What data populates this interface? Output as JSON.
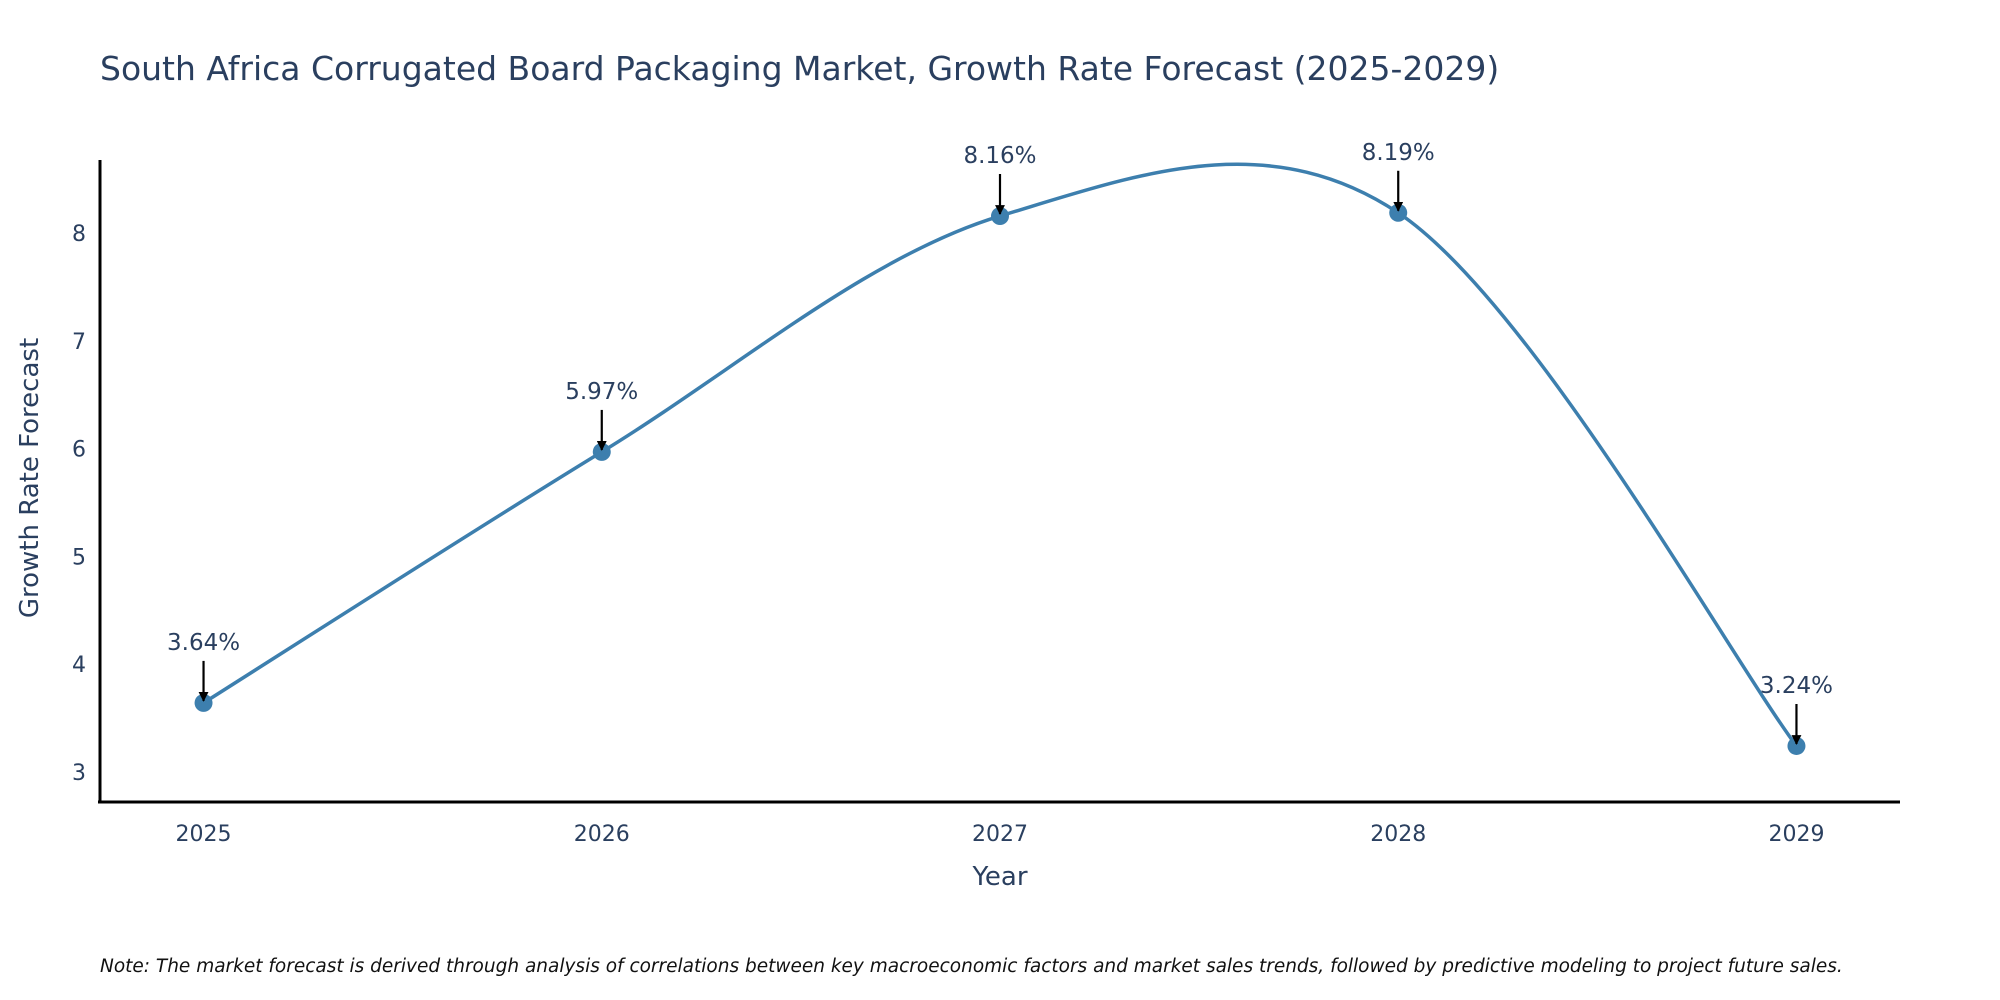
{
  "chart_data": {
    "type": "line",
    "title": "South Africa Corrugated Board Packaging Market, Growth Rate Forecast (2025-2029)",
    "xlabel": "Year",
    "ylabel": "Growth Rate Forecast",
    "categories": [
      "2025",
      "2026",
      "2027",
      "2028",
      "2029"
    ],
    "x": [
      2025,
      2026,
      2027,
      2028,
      2029
    ],
    "series": [
      {
        "name": "Growth Rate Forecast",
        "values": [
          3.64,
          5.97,
          8.16,
          8.19,
          3.24
        ],
        "color": "#3d7fae",
        "line_shape": "spline",
        "markers": true
      }
    ],
    "annotations": [
      "3.64%",
      "5.97%",
      "8.16%",
      "8.19%",
      "3.24%"
    ],
    "yticks": [
      3,
      4,
      5,
      6,
      7,
      8
    ],
    "xticks": [
      "2025",
      "2026",
      "2027",
      "2028",
      "2029"
    ],
    "ylim": [
      2.72,
      8.68
    ],
    "xlim": [
      2024.74,
      2029.26
    ],
    "grid": false,
    "legend": "none",
    "note": "Note: The market forecast is derived through analysis of correlations between key macroeconomic factors and market sales trends, followed by predictive modeling to project future sales."
  }
}
